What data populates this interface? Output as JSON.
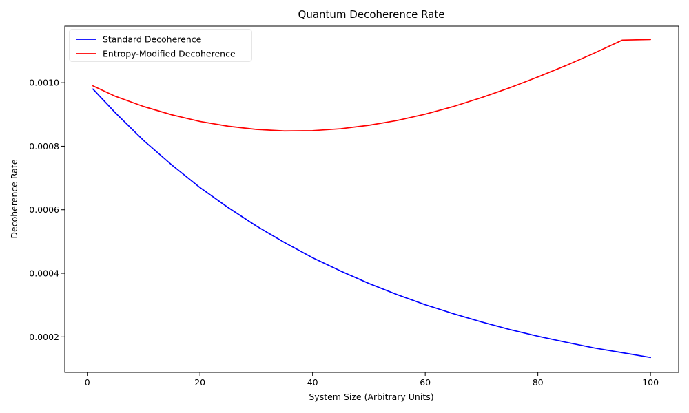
{
  "chart_data": {
    "type": "line",
    "title": "Quantum Decoherence Rate",
    "xlabel": "System Size (Arbitrary Units)",
    "ylabel": "Decoherence Rate",
    "xlim": [
      -4,
      105
    ],
    "ylim": [
      8.8e-05,
      0.001178
    ],
    "x_ticks": [
      0,
      20,
      40,
      60,
      80,
      100
    ],
    "x_tick_labels": [
      "0",
      "20",
      "40",
      "60",
      "80",
      "100"
    ],
    "y_ticks": [
      0.0002,
      0.0004,
      0.0006,
      0.0008,
      0.001
    ],
    "y_tick_labels": [
      "0.0002",
      "0.0004",
      "0.0006",
      "0.0008",
      "0.0010"
    ],
    "grid": false,
    "legend_position": "top-left",
    "x": [
      1,
      5,
      10,
      15,
      20,
      25,
      30,
      35,
      40,
      45,
      50,
      55,
      60,
      65,
      70,
      75,
      80,
      85,
      90,
      95,
      100
    ],
    "series": [
      {
        "name": "Standard Decoherence",
        "color": "#0000ff",
        "values": [
          0.00098,
          0.000905,
          0.000818,
          0.000741,
          0.00067,
          0.000607,
          0.000549,
          0.000497,
          0.000449,
          0.000407,
          0.000368,
          0.000333,
          0.000301,
          0.000273,
          0.000247,
          0.000223,
          0.000202,
          0.000183,
          0.000165,
          0.00015,
          0.000135
        ]
      },
      {
        "name": "Entropy-Modified Decoherence",
        "color": "#ff0000",
        "values": [
          0.00099,
          0.000957,
          0.000925,
          0.000899,
          0.000878,
          0.000863,
          0.000853,
          0.000848,
          0.000849,
          0.000855,
          0.000866,
          0.000881,
          0.000901,
          0.000925,
          0.000953,
          0.000984,
          0.001018,
          0.001054,
          0.001093,
          0.001134,
          0.001136
        ]
      }
    ]
  }
}
